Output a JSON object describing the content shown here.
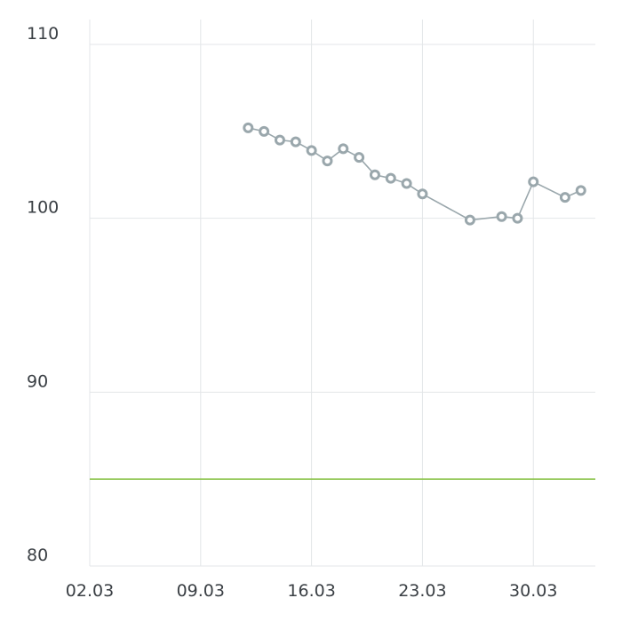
{
  "chart_data": {
    "type": "line",
    "x_axis": {
      "type": "date",
      "tick_labels": [
        "02.03",
        "09.03",
        "16.03",
        "23.03",
        "30.03"
      ],
      "range": [
        "02.03",
        "05.04"
      ]
    },
    "y_axis": {
      "tick_labels": [
        "110",
        "100",
        "90",
        "80"
      ],
      "ticks": [
        110,
        100,
        90,
        80
      ],
      "ylim": [
        80,
        110
      ]
    },
    "grid": true,
    "series": [
      {
        "color": "#9aa7ac",
        "marker": "hollow-circle",
        "points": [
          {
            "x": "12.03",
            "y": 105.2
          },
          {
            "x": "13.03",
            "y": 105.0
          },
          {
            "x": "14.03",
            "y": 104.5
          },
          {
            "x": "15.03",
            "y": 104.4
          },
          {
            "x": "16.03",
            "y": 103.9
          },
          {
            "x": "17.03",
            "y": 103.3
          },
          {
            "x": "18.03",
            "y": 104.0
          },
          {
            "x": "19.03",
            "y": 103.5
          },
          {
            "x": "20.03",
            "y": 102.5
          },
          {
            "x": "21.03",
            "y": 102.3
          },
          {
            "x": "22.03",
            "y": 102.0
          },
          {
            "x": "23.03",
            "y": 101.4
          },
          {
            "x": "26.03",
            "y": 99.9
          },
          {
            "x": "28.03",
            "y": 100.1
          },
          {
            "x": "29.03",
            "y": 100.0
          },
          {
            "x": "30.03",
            "y": 102.1
          },
          {
            "x": "01.04",
            "y": 101.2
          },
          {
            "x": "02.04",
            "y": 101.6
          }
        ]
      }
    ],
    "reference_line": {
      "y": 85,
      "color": "#8bc34a"
    }
  }
}
